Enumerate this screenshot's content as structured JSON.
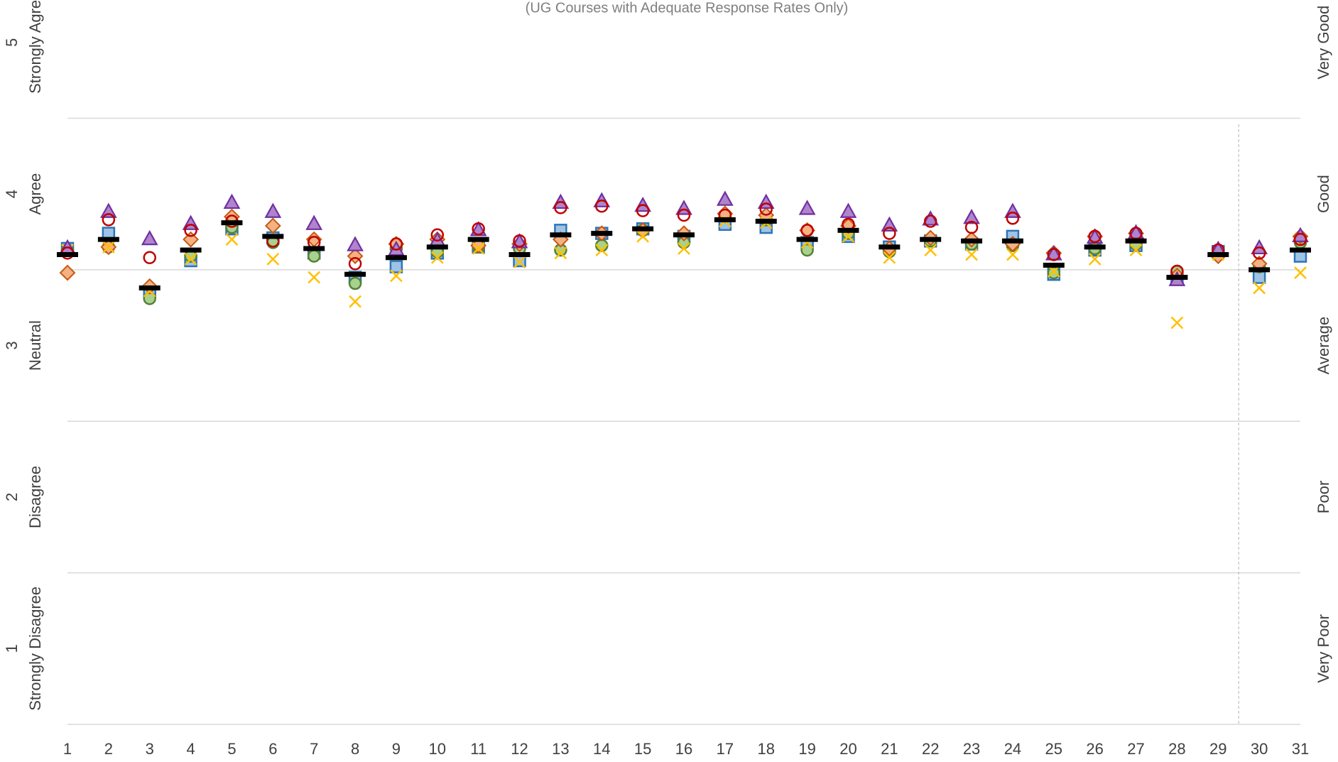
{
  "chart_data": {
    "type": "scatter",
    "subtitle": "(UG Courses with Adequate Response Rates Only)",
    "x": [
      1,
      2,
      3,
      4,
      5,
      6,
      7,
      8,
      9,
      10,
      11,
      12,
      13,
      14,
      15,
      16,
      17,
      18,
      19,
      20,
      21,
      22,
      23,
      24,
      25,
      26,
      27,
      28,
      29,
      30,
      31
    ],
    "xlim": [
      1,
      31
    ],
    "xticks": [
      1,
      2,
      3,
      4,
      5,
      6,
      7,
      8,
      9,
      10,
      11,
      12,
      13,
      14,
      15,
      16,
      17,
      18,
      19,
      20,
      21,
      22,
      23,
      24,
      25,
      26,
      27,
      28,
      29,
      30,
      31
    ],
    "ylim": [
      0.5,
      5.28
    ],
    "yticks": [
      {
        "value": 1,
        "label": "Strongly Disagree"
      },
      {
        "value": 2,
        "label": "Disagree"
      },
      {
        "value": 3,
        "label": "Neutral"
      },
      {
        "value": 4,
        "label": "Agree"
      },
      {
        "value": 5,
        "label": "Strongly Agree"
      }
    ],
    "y2lim": [
      0.5,
      5.28
    ],
    "y2ticks": [
      {
        "value": 1,
        "label": "Very Poor"
      },
      {
        "value": 2,
        "label": "Poor"
      },
      {
        "value": 3,
        "label": "Average"
      },
      {
        "value": 4,
        "label": "Good"
      },
      {
        "value": 5,
        "label": "Very Good"
      }
    ],
    "grid_lines": [
      0.5,
      1.5,
      2.5,
      3.5,
      4.5
    ],
    "divider_x": 29.5,
    "series": [
      {
        "marker": "square",
        "color": "#9dc3e6",
        "edgecolor": "#2e75b6",
        "values": [
          3.64,
          3.74,
          3.36,
          3.56,
          3.77,
          3.71,
          3.61,
          3.45,
          3.52,
          3.61,
          3.65,
          3.56,
          3.76,
          3.74,
          3.77,
          3.72,
          3.8,
          3.78,
          3.68,
          3.72,
          3.65,
          3.69,
          3.67,
          3.72,
          3.47,
          3.63,
          3.66,
          3.44,
          3.62,
          3.45,
          3.59
        ]
      },
      {
        "marker": "circle",
        "color": "#a9d18e",
        "edgecolor": "#548235",
        "values": [
          3.63,
          3.65,
          3.31,
          3.59,
          3.78,
          3.68,
          3.59,
          3.41,
          3.64,
          3.62,
          3.65,
          3.64,
          3.63,
          3.66,
          3.76,
          3.68,
          3.85,
          3.83,
          3.63,
          3.74,
          3.62,
          3.69,
          3.67,
          3.66,
          3.48,
          3.64,
          3.67,
          3.49,
          3.63,
          3.52,
          3.68
        ]
      },
      {
        "marker": "diamond",
        "color": "#f4b183",
        "edgecolor": "#c55a11",
        "values": [
          3.48,
          3.65,
          3.39,
          3.7,
          3.85,
          3.79,
          3.7,
          3.59,
          3.67,
          3.7,
          3.66,
          3.67,
          3.7,
          3.74,
          3.76,
          3.74,
          3.87,
          3.86,
          3.76,
          3.79,
          3.64,
          3.71,
          3.7,
          3.67,
          3.61,
          3.72,
          3.74,
          3.46,
          3.59,
          3.54,
          3.72
        ]
      },
      {
        "marker": "x",
        "color": "#ffc000",
        "edgecolor": "#ffc000",
        "values": [
          3.63,
          3.65,
          3.36,
          3.57,
          3.7,
          3.57,
          3.45,
          3.29,
          3.46,
          3.58,
          3.64,
          3.55,
          3.61,
          3.63,
          3.72,
          3.64,
          3.82,
          3.81,
          3.68,
          3.72,
          3.58,
          3.63,
          3.6,
          3.6,
          3.49,
          3.57,
          3.63,
          3.15,
          3.6,
          3.38,
          3.48
        ]
      },
      {
        "marker": "triangle",
        "color": "#b084cc",
        "edgecolor": "#7030a0",
        "values": [
          3.64,
          3.88,
          3.7,
          3.8,
          3.94,
          3.88,
          3.8,
          3.66,
          3.63,
          3.69,
          3.76,
          3.68,
          3.94,
          3.95,
          3.92,
          3.9,
          3.96,
          3.94,
          3.9,
          3.88,
          3.79,
          3.83,
          3.84,
          3.88,
          3.6,
          3.71,
          3.74,
          3.43,
          3.63,
          3.64,
          3.72
        ]
      },
      {
        "marker": "open-circle",
        "color": "none",
        "edgecolor": "#c00000",
        "values": [
          3.61,
          3.83,
          3.58,
          3.76,
          3.82,
          3.69,
          3.68,
          3.54,
          3.67,
          3.73,
          3.77,
          3.69,
          3.91,
          3.92,
          3.89,
          3.86,
          3.86,
          3.9,
          3.76,
          3.8,
          3.74,
          3.82,
          3.78,
          3.84,
          3.6,
          3.72,
          3.74,
          3.49,
          3.63,
          3.61,
          3.7
        ]
      },
      {
        "marker": "dash",
        "color": "#000000",
        "edgecolor": "#000000",
        "values": [
          3.6,
          3.7,
          3.38,
          3.63,
          3.81,
          3.72,
          3.64,
          3.47,
          3.58,
          3.65,
          3.7,
          3.6,
          3.73,
          3.74,
          3.77,
          3.73,
          3.83,
          3.82,
          3.7,
          3.76,
          3.65,
          3.7,
          3.69,
          3.69,
          3.53,
          3.65,
          3.69,
          3.45,
          3.6,
          3.5,
          3.63
        ]
      }
    ]
  }
}
